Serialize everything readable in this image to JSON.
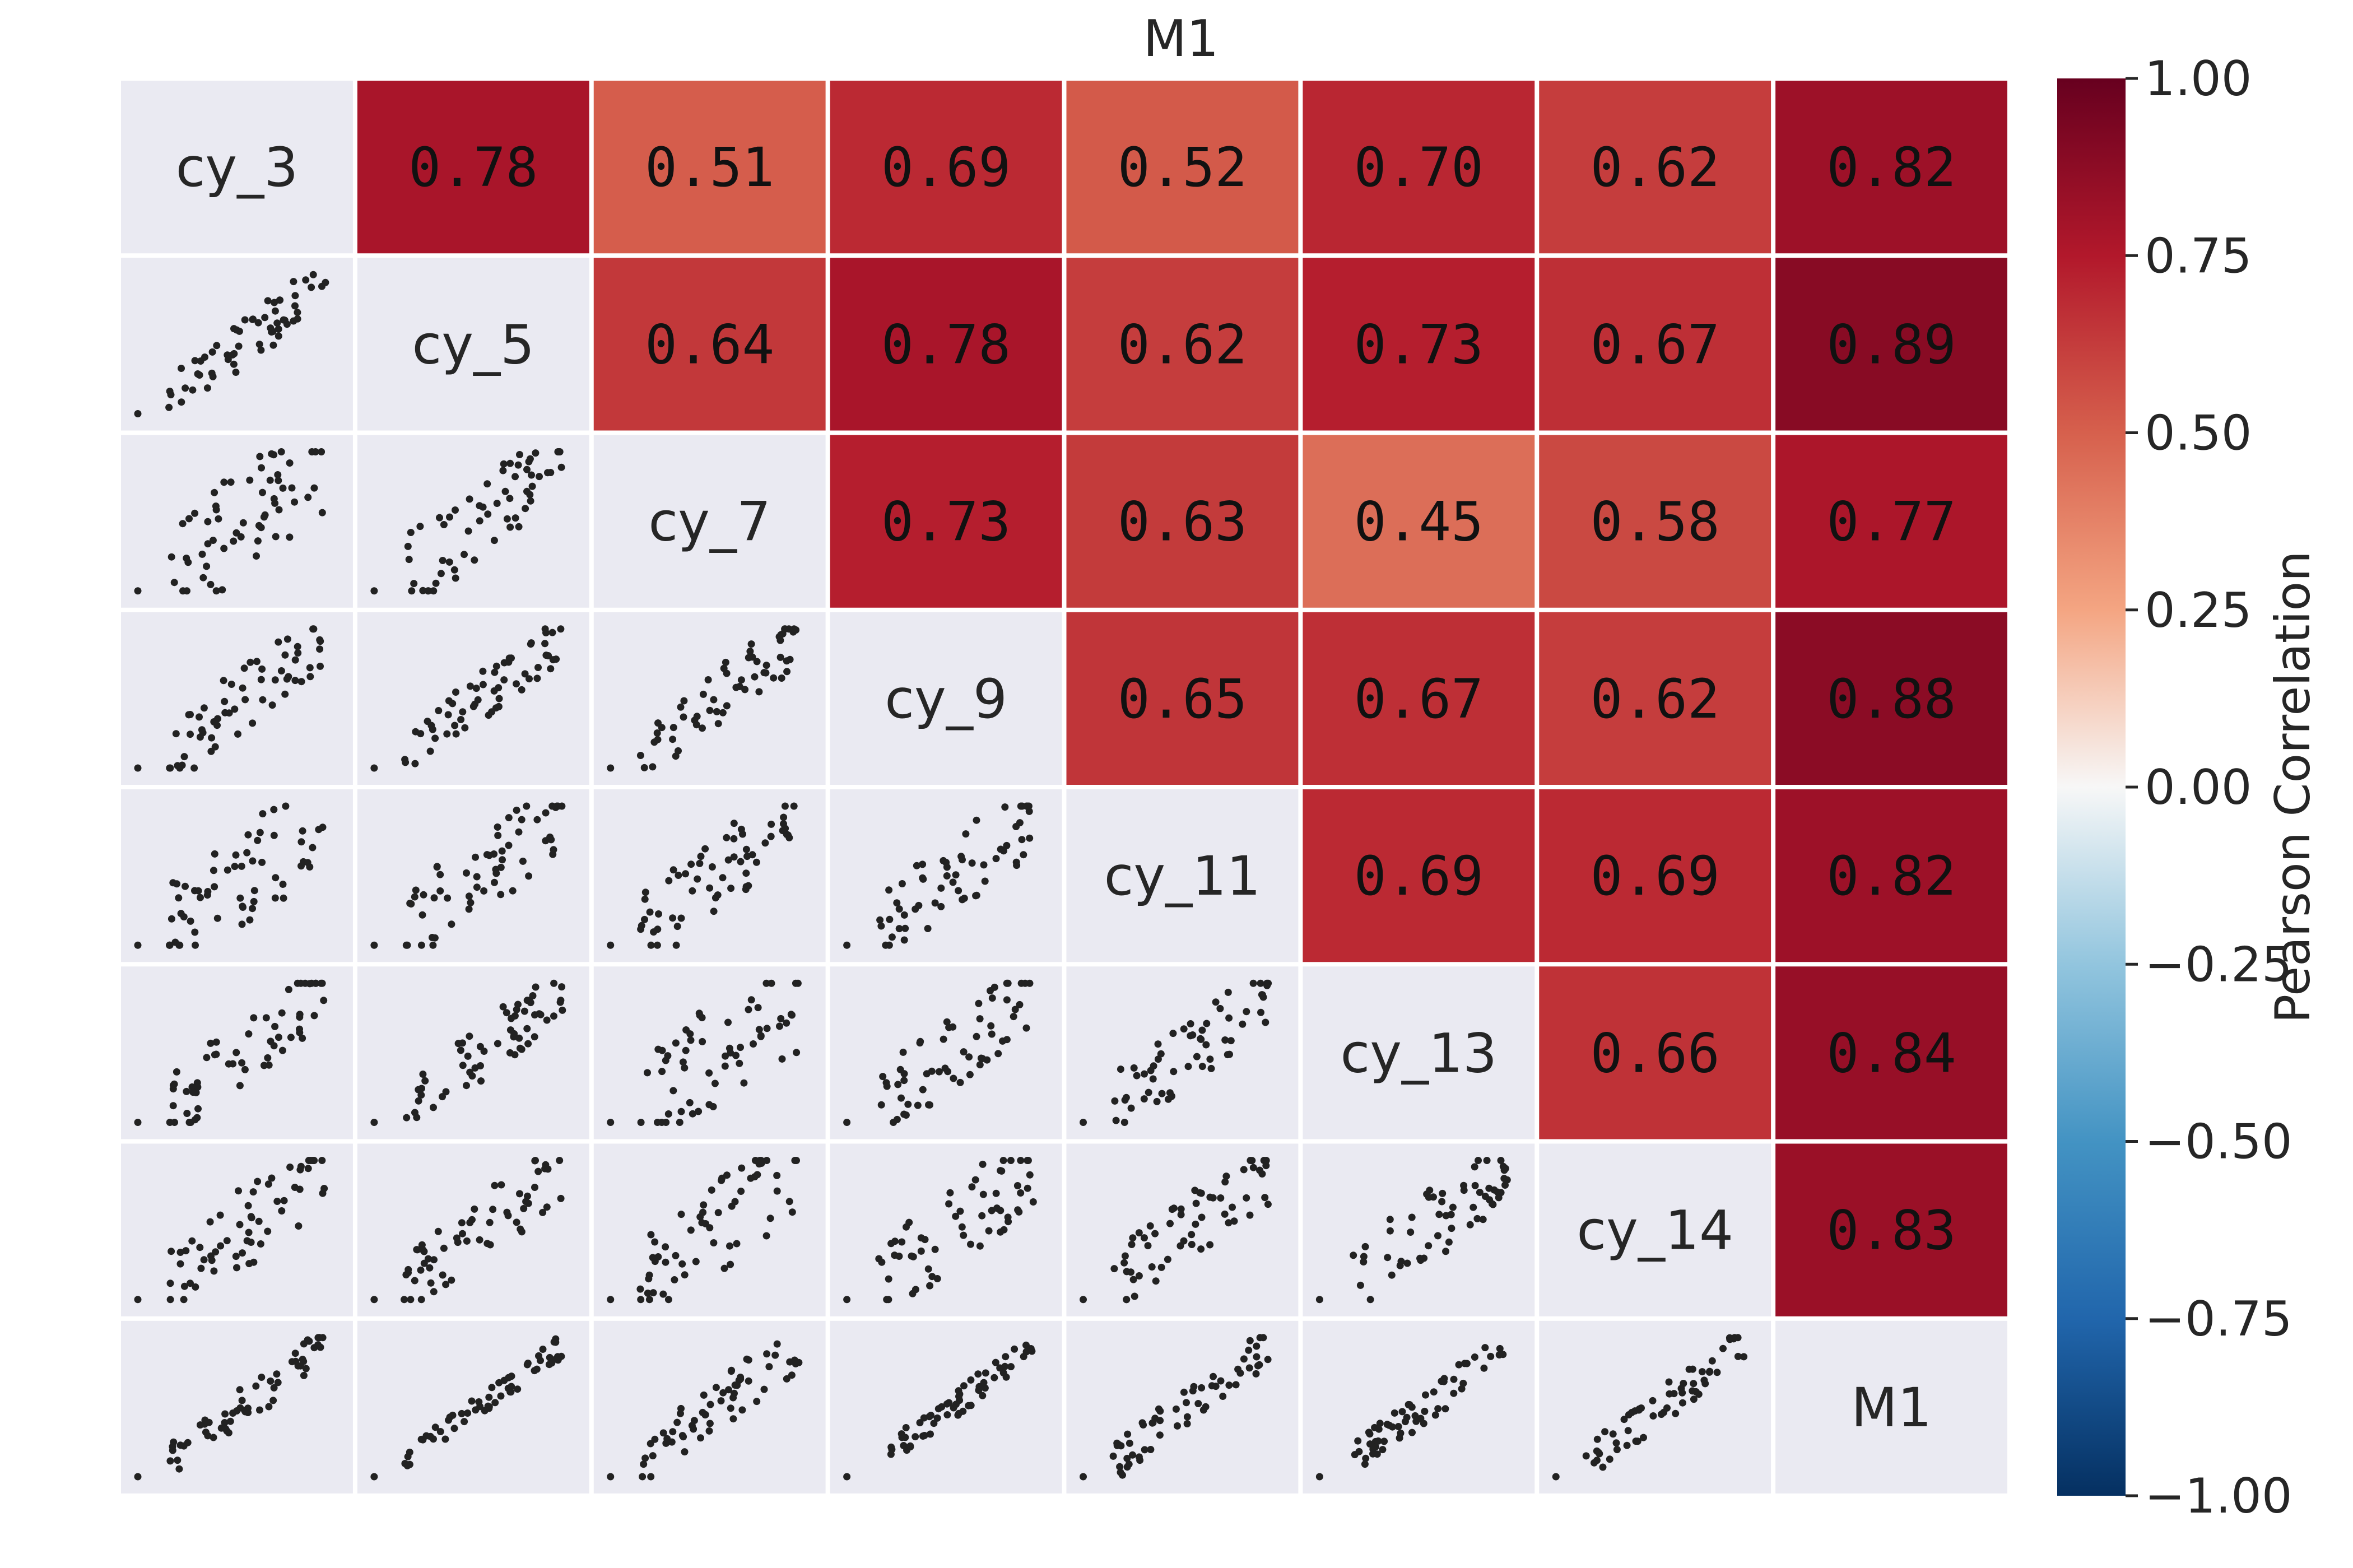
{
  "chart_data": {
    "type": "heatmap",
    "title": "M1",
    "variables": [
      "cy_3",
      "cy_5",
      "cy_7",
      "cy_9",
      "cy_11",
      "cy_13",
      "cy_14",
      "M1"
    ],
    "upper_triangle_pearson": [
      {
        "row": "cy_3",
        "col": "cy_5",
        "value": "0.78"
      },
      {
        "row": "cy_3",
        "col": "cy_7",
        "value": "0.51"
      },
      {
        "row": "cy_3",
        "col": "cy_9",
        "value": "0.69"
      },
      {
        "row": "cy_3",
        "col": "cy_11",
        "value": "0.52"
      },
      {
        "row": "cy_3",
        "col": "cy_13",
        "value": "0.70"
      },
      {
        "row": "cy_3",
        "col": "cy_14",
        "value": "0.62"
      },
      {
        "row": "cy_3",
        "col": "M1",
        "value": "0.82"
      },
      {
        "row": "cy_5",
        "col": "cy_7",
        "value": "0.64"
      },
      {
        "row": "cy_5",
        "col": "cy_9",
        "value": "0.78"
      },
      {
        "row": "cy_5",
        "col": "cy_11",
        "value": "0.62"
      },
      {
        "row": "cy_5",
        "col": "cy_13",
        "value": "0.73"
      },
      {
        "row": "cy_5",
        "col": "cy_14",
        "value": "0.67"
      },
      {
        "row": "cy_5",
        "col": "M1",
        "value": "0.89"
      },
      {
        "row": "cy_7",
        "col": "cy_9",
        "value": "0.73"
      },
      {
        "row": "cy_7",
        "col": "cy_11",
        "value": "0.63"
      },
      {
        "row": "cy_7",
        "col": "cy_13",
        "value": "0.45"
      },
      {
        "row": "cy_7",
        "col": "cy_14",
        "value": "0.58"
      },
      {
        "row": "cy_7",
        "col": "M1",
        "value": "0.77"
      },
      {
        "row": "cy_9",
        "col": "cy_11",
        "value": "0.65"
      },
      {
        "row": "cy_9",
        "col": "cy_13",
        "value": "0.67"
      },
      {
        "row": "cy_9",
        "col": "cy_14",
        "value": "0.62"
      },
      {
        "row": "cy_9",
        "col": "M1",
        "value": "0.88"
      },
      {
        "row": "cy_11",
        "col": "cy_13",
        "value": "0.69"
      },
      {
        "row": "cy_11",
        "col": "cy_14",
        "value": "0.69"
      },
      {
        "row": "cy_11",
        "col": "M1",
        "value": "0.82"
      },
      {
        "row": "cy_13",
        "col": "cy_14",
        "value": "0.66"
      },
      {
        "row": "cy_13",
        "col": "M1",
        "value": "0.84"
      },
      {
        "row": "cy_14",
        "col": "M1",
        "value": "0.83"
      }
    ],
    "lower_triangle": "scatter",
    "colorbar": {
      "label": "Pearson Correlation",
      "range": [
        -1.0,
        1.0
      ],
      "ticks": [
        "1.00",
        "0.75",
        "0.50",
        "0.25",
        "0.00",
        "−0.25",
        "−0.50",
        "−0.75",
        "−1.00"
      ],
      "colormap": "RdBu_r"
    },
    "colors": {
      "diag_bg": "#eaeaf2",
      "scatter_point": "#222222",
      "cell_border": "#ffffff"
    }
  }
}
